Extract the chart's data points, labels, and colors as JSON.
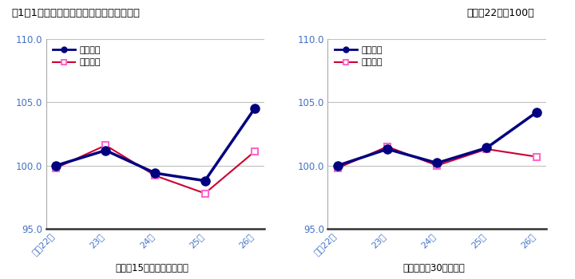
{
  "title": "図1－1　賃金指数（現金給与総額）の推移",
  "subtitle": "（平成22年＝100）",
  "x_labels": [
    "平成22年",
    "23年",
    "24年",
    "25年",
    "26年"
  ],
  "left_subtitle": "〈規模15人以上全事業所〉",
  "right_subtitle": "〈うち規模30人以上〉",
  "chart1": {
    "nominal": [
      100.0,
      101.2,
      99.4,
      98.8,
      104.5
    ],
    "real": [
      99.8,
      101.6,
      99.2,
      97.8,
      101.1
    ]
  },
  "chart2": {
    "nominal": [
      100.0,
      101.3,
      100.2,
      101.4,
      104.2
    ],
    "real": [
      99.8,
      101.5,
      100.0,
      101.3,
      100.7
    ]
  },
  "ylim": [
    95.0,
    110.0
  ],
  "yticks": [
    95.0,
    100.0,
    105.0,
    110.0
  ],
  "nominal_color": "#000080",
  "real_line_color": "#cc0033",
  "real_marker_edge": "#ff66cc",
  "background_color": "#ffffff",
  "grid_color": "#c0c0c0",
  "tick_color": "#4472c4",
  "legend_nominal": "名目指数",
  "legend_real": "実質指数"
}
